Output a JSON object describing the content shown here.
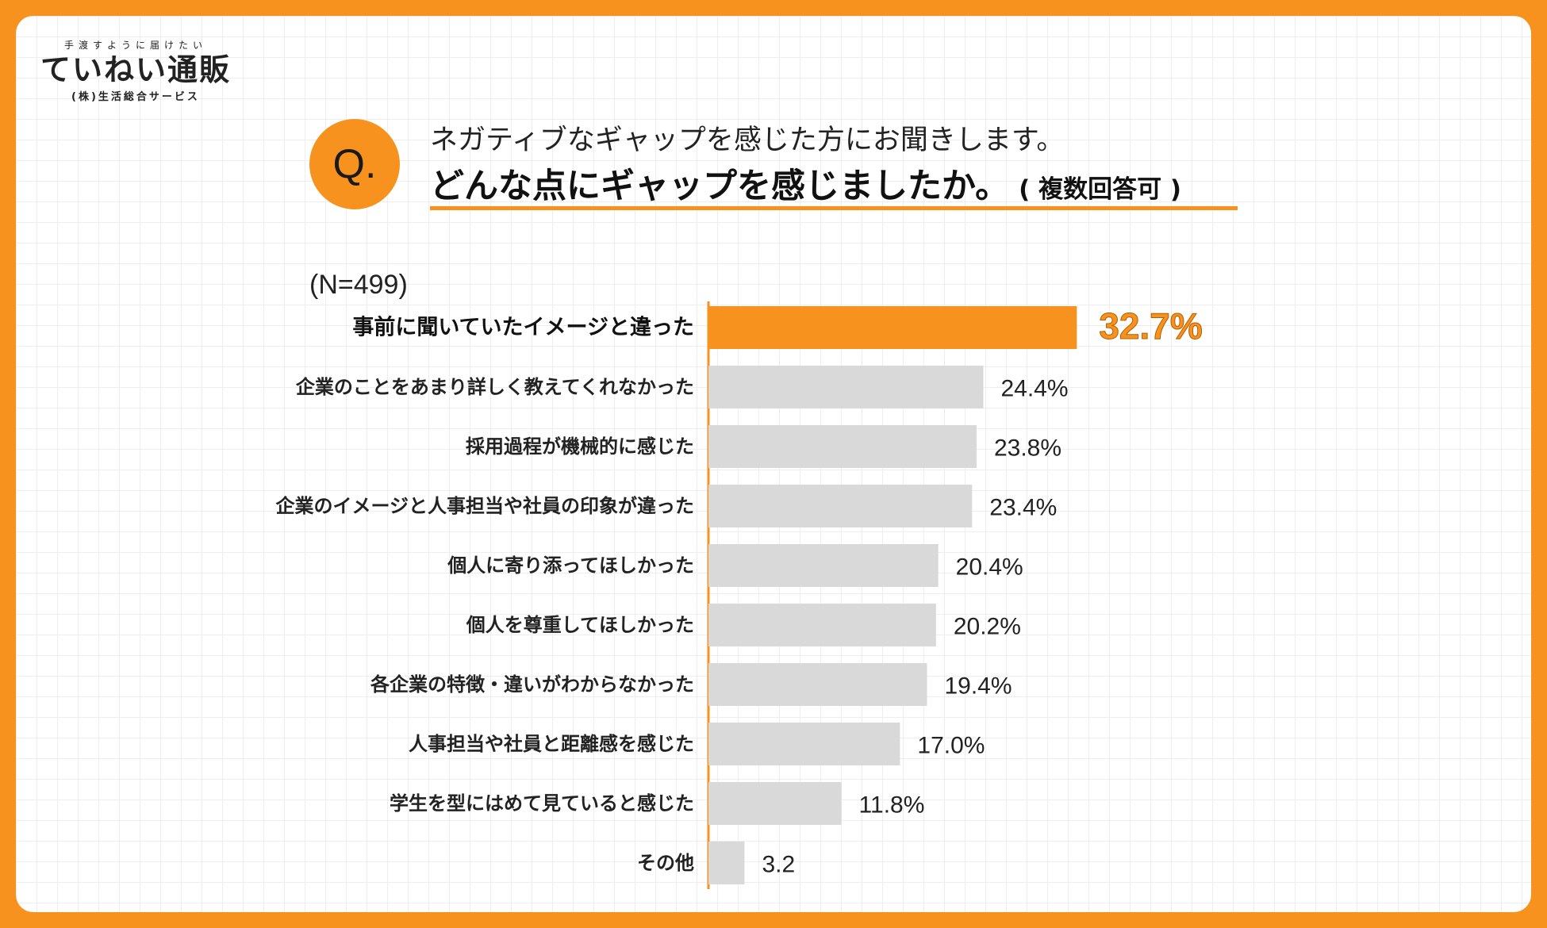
{
  "logo": {
    "tagline": "手渡すように届けたい",
    "name": "ていねい通販",
    "company": "(株)生活総合サービス"
  },
  "question": {
    "badge": "Q.",
    "line1": "ネガティブなギャップを感じた方にお聞きします。",
    "line2": "どんな点にギャップを感じましたか。",
    "note": "( 複数回答可 )"
  },
  "sample": "(N=499)",
  "colors": {
    "accent": "#F7921E",
    "bar": "#D9D9D9",
    "background_border": "#F7921E"
  },
  "chart_data": {
    "type": "bar",
    "orientation": "horizontal",
    "title": "どんな点にギャップを感じましたか。",
    "categories": [
      "事前に聞いていたイメージと違った",
      "企業のことをあまり詳しく教えてくれなかった",
      "採用過程が機械的に感じた",
      "企業のイメージと人事担当や社員の印象が違った",
      "個人に寄り添ってほしかった",
      "個人を尊重してほしかった",
      "各企業の特徴・違いがわからなかった",
      "人事担当や社員と距離感を感じた",
      "学生を型にはめて見ていると感じた",
      "その他"
    ],
    "values": [
      32.7,
      24.4,
      23.8,
      23.4,
      20.4,
      20.2,
      19.4,
      17.0,
      11.8,
      3.2
    ],
    "value_labels": [
      "32.7%",
      "24.4%",
      "23.8%",
      "23.4%",
      "20.4%",
      "20.2%",
      "19.4%",
      "17.0%",
      "11.8%",
      "3.2"
    ],
    "highlight_index": 0,
    "unit": "%",
    "xlim": [
      0,
      34
    ]
  }
}
